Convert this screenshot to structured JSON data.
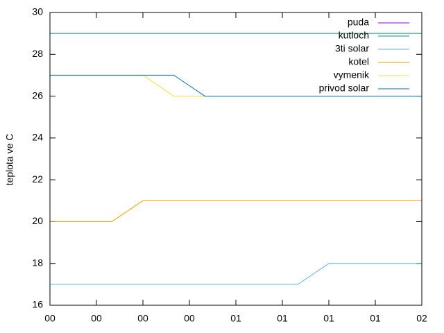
{
  "chart_data": {
    "type": "line",
    "ylabel": "teplota ve C",
    "x": [
      0,
      20,
      30,
      40,
      50,
      80,
      90,
      120
    ],
    "xlim": [
      0,
      120
    ],
    "xticks": [
      {
        "value": 0,
        "label": "00"
      },
      {
        "value": 15,
        "label": "00"
      },
      {
        "value": 30,
        "label": "00"
      },
      {
        "value": 45,
        "label": "00"
      },
      {
        "value": 60,
        "label": "01"
      },
      {
        "value": 75,
        "label": "01"
      },
      {
        "value": 90,
        "label": "01"
      },
      {
        "value": 105,
        "label": "01"
      },
      {
        "value": 120,
        "label": "02"
      }
    ],
    "ylim": [
      16,
      30
    ],
    "yticks": [
      16,
      18,
      20,
      22,
      24,
      26,
      28,
      30
    ],
    "legend": "top-right",
    "series": [
      {
        "name": "puda",
        "color": "#9400d3",
        "values": [
          null,
          null,
          null,
          null,
          null,
          null,
          null,
          null
        ]
      },
      {
        "name": "kutloch",
        "color": "#009e73",
        "values": [
          29,
          29,
          29,
          29,
          29,
          29,
          29,
          29
        ]
      },
      {
        "name": "3ti solar",
        "color": "#56b4e9",
        "values": [
          17,
          17,
          17,
          17,
          17,
          17,
          18,
          18
        ]
      },
      {
        "name": "kotel",
        "color": "#e69f00",
        "values": [
          20,
          20,
          21,
          21,
          21,
          21,
          21,
          21
        ]
      },
      {
        "name": "vymenik",
        "color": "#f0e442",
        "values": [
          27,
          27,
          27,
          26,
          26,
          26,
          26,
          26
        ]
      },
      {
        "name": "privod solar",
        "color": "#0072b2",
        "values": [
          27,
          27,
          27,
          27,
          26,
          26,
          26,
          26
        ]
      }
    ]
  }
}
